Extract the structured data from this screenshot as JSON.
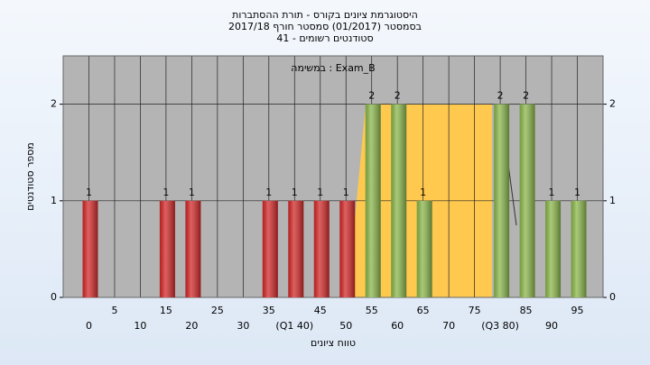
{
  "chart_data": {
    "type": "bar",
    "title_lines": [
      "היסטוגרמת ציונים בקורס - תורת ההסתברות",
      "בסמסטר (01/2017) סמסטר חורף 2017/18",
      "סטודנטים רשומים - 41"
    ],
    "annotation": "במשימה : Exam_B",
    "x_label": "טווח ציונים",
    "y_label": "מספר סטודנטים",
    "categories": [
      "0",
      "5",
      "10",
      "15",
      "20",
      "25",
      "30",
      "35",
      "(Q1 40)",
      "45",
      "50",
      "55",
      "60",
      "65",
      "70",
      "75",
      "(Q3 80)",
      "85",
      "90",
      "95"
    ],
    "values": [
      1,
      0,
      0,
      1,
      1,
      0,
      0,
      1,
      1,
      1,
      1,
      2,
      2,
      1,
      0,
      0,
      2,
      2,
      1,
      1
    ],
    "colors": [
      "#d42a2a",
      "#d42a2a",
      "#d42a2a",
      "#d42a2a",
      "#d42a2a",
      "#d42a2a",
      "#d42a2a",
      "#d42a2a",
      "#d42a2a",
      "#d42a2a",
      "#d42a2a",
      "#8cb84c",
      "#8cb84c",
      "#8cb84c",
      "#8cb84c",
      "#8cb84c",
      "#8cb84c",
      "#8cb84c",
      "#8cb84c",
      "#8cb84c"
    ],
    "ylim": [
      0,
      2.5
    ],
    "yticks": [
      0,
      1,
      2
    ],
    "grid": true
  }
}
